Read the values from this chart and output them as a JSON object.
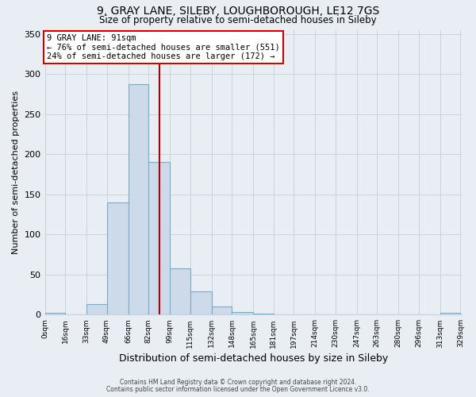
{
  "title": "9, GRAY LANE, SILEBY, LOUGHBOROUGH, LE12 7GS",
  "subtitle": "Size of property relative to semi-detached houses in Sileby",
  "xlabel": "Distribution of semi-detached houses by size in Sileby",
  "ylabel": "Number of semi-detached properties",
  "annotation_line1": "9 GRAY LANE: 91sqm",
  "annotation_line2": "← 76% of semi-detached houses are smaller (551)",
  "annotation_line3": "24% of semi-detached houses are larger (172) →",
  "bin_edges": [
    0,
    16,
    33,
    49,
    66,
    82,
    99,
    115,
    132,
    148,
    165,
    181,
    197,
    214,
    230,
    247,
    263,
    280,
    296,
    313,
    329
  ],
  "bin_counts": [
    2,
    0,
    13,
    140,
    287,
    190,
    58,
    29,
    10,
    3,
    1,
    0,
    0,
    0,
    0,
    0,
    0,
    0,
    0,
    2
  ],
  "bar_color": "#ccdaea",
  "bar_edge_color": "#7aaac8",
  "vline_x": 91,
  "vline_color": "#aa0000",
  "ylim": [
    0,
    355
  ],
  "yticks": [
    0,
    50,
    100,
    150,
    200,
    250,
    300,
    350
  ],
  "footer1": "Contains HM Land Registry data © Crown copyright and database right 2024.",
  "footer2": "Contains public sector information licensed under the Open Government Licence v3.0.",
  "background_color": "#e8eef4",
  "plot_background": "#e8eef4",
  "grid_color": "#c8d4de",
  "tick_labels": [
    "0sqm",
    "16sqm",
    "33sqm",
    "49sqm",
    "66sqm",
    "82sqm",
    "99sqm",
    "115sqm",
    "132sqm",
    "148sqm",
    "165sqm",
    "181sqm",
    "197sqm",
    "214sqm",
    "230sqm",
    "247sqm",
    "263sqm",
    "280sqm",
    "296sqm",
    "313sqm",
    "329sqm"
  ]
}
